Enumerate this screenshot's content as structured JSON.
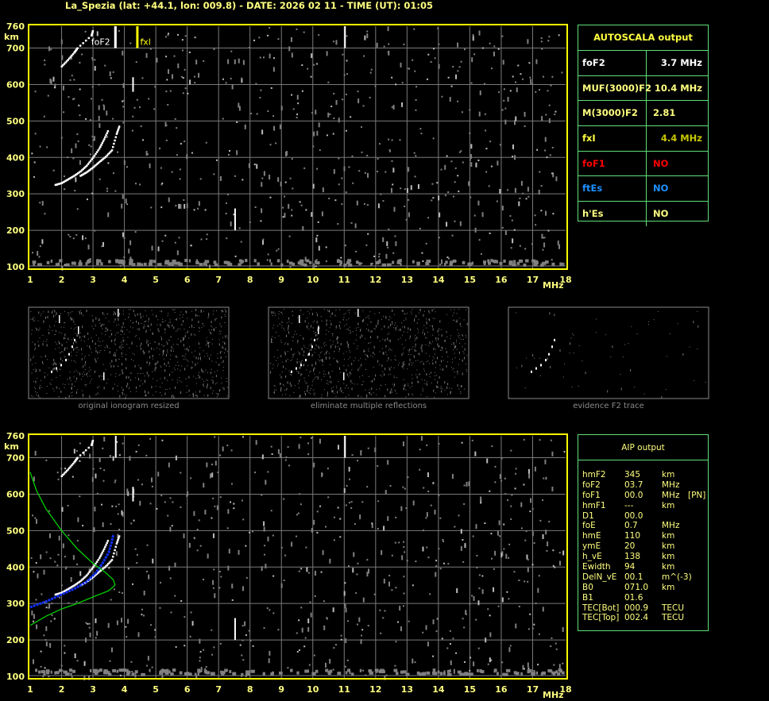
{
  "title": "La_Spezia (lat: +44.1, lon: 009.8) - DATE: 2026 02 11 - TIME (UT): 01:05",
  "colors": {
    "axis": "#ffff00",
    "grid": "#7a7a7a",
    "trace": "#ffffff",
    "fxl": "#ffff00",
    "profile": "#00e000",
    "aip_trace": "#1030ff",
    "panel_border": "#5fe07a",
    "red": "#ff0000",
    "blue": "#1e90ff"
  },
  "chart_data": [
    {
      "type": "scatter",
      "name_marker_labels": {
        "foF2": "foF2",
        "fxl": "fxl"
      },
      "xlabel": "MHz",
      "ylabel": "km",
      "xlim": [
        1,
        18
      ],
      "ylim": [
        100,
        760
      ],
      "xticks": [
        "1",
        "2",
        "3",
        "4",
        "5",
        "6",
        "7",
        "8",
        "9",
        "10",
        "11",
        "12",
        "13",
        "14",
        "15",
        "16",
        "17",
        "18"
      ],
      "yticks": [
        "100",
        "200",
        "300",
        "400",
        "500",
        "600",
        "700",
        "760"
      ],
      "grid": true,
      "markers": {
        "foF2": 3.7,
        "fxl": 4.4
      },
      "trace_o": [
        [
          1.8,
          325
        ],
        [
          2.0,
          330
        ],
        [
          2.2,
          340
        ],
        [
          2.4,
          350
        ],
        [
          2.6,
          362
        ],
        [
          2.8,
          378
        ],
        [
          3.0,
          400
        ],
        [
          3.2,
          425
        ],
        [
          3.35,
          450
        ],
        [
          3.5,
          478
        ]
      ],
      "trace_x": [
        [
          2.6,
          350
        ],
        [
          2.8,
          360
        ],
        [
          3.0,
          373
        ],
        [
          3.2,
          388
        ],
        [
          3.4,
          402
        ],
        [
          3.6,
          420
        ],
        [
          3.75,
          465
        ],
        [
          3.85,
          490
        ]
      ],
      "trace_multi": [
        [
          2.0,
          650
        ],
        [
          2.2,
          668
        ],
        [
          2.4,
          688
        ],
        [
          2.5,
          700
        ],
        [
          2.95,
          735
        ],
        [
          3.0,
          750
        ]
      ],
      "spikes": [
        [
          3.7,
          700,
          760
        ],
        [
          4.25,
          580,
          620
        ],
        [
          11.0,
          700,
          760
        ],
        [
          7.5,
          200,
          260
        ]
      ]
    },
    {
      "type": "line",
      "xlabel": "MHz",
      "ylabel": "km",
      "xlim": [
        1,
        18
      ],
      "ylim": [
        100,
        760
      ],
      "xticks": [
        "1",
        "2",
        "3",
        "4",
        "5",
        "6",
        "7",
        "8",
        "9",
        "10",
        "11",
        "12",
        "13",
        "14",
        "15",
        "16",
        "17",
        "18"
      ],
      "yticks": [
        "100",
        "200",
        "300",
        "400",
        "500",
        "600",
        "700",
        "760"
      ],
      "grid": true,
      "profile": [
        [
          1.0,
          660
        ],
        [
          1.2,
          610
        ],
        [
          1.5,
          560
        ],
        [
          2.0,
          500
        ],
        [
          2.5,
          450
        ],
        [
          3.0,
          410
        ],
        [
          3.4,
          385
        ],
        [
          3.65,
          365
        ],
        [
          3.7,
          350
        ],
        [
          3.5,
          335
        ],
        [
          3.0,
          318
        ],
        [
          2.5,
          300
        ],
        [
          2.0,
          285
        ],
        [
          1.5,
          265
        ],
        [
          1.0,
          240
        ]
      ],
      "aip_trace": [
        [
          1.0,
          290
        ],
        [
          1.5,
          305
        ],
        [
          2.0,
          325
        ],
        [
          2.4,
          340
        ],
        [
          2.8,
          360
        ],
        [
          3.1,
          385
        ],
        [
          3.3,
          410
        ],
        [
          3.5,
          440
        ],
        [
          3.6,
          470
        ],
        [
          3.65,
          490
        ]
      ]
    }
  ],
  "thumbnails": [
    {
      "caption": "original ionogram resized"
    },
    {
      "caption": "eliminate multiple reflections"
    },
    {
      "caption": "evidence F2 trace"
    }
  ],
  "autoscala": {
    "header": "AUTOSCALA output",
    "rows": [
      {
        "key": "foF2",
        "value": "3.7 MHz",
        "color": "#ffffff"
      },
      {
        "key": "MUF(3000)F2",
        "value": "10.4 MHz",
        "color": "#ffff80"
      },
      {
        "key": "M(3000)F2",
        "value": "2.81",
        "color": "#ffff80"
      },
      {
        "key": "fxI",
        "value": "4.4 MHz",
        "color": "#ffff40",
        "vcolor": "#c8c800"
      },
      {
        "key": "foF1",
        "value": "NO",
        "color": "#ff0000"
      },
      {
        "key": "ftEs",
        "value": "NO",
        "color": "#1e90ff"
      },
      {
        "key": "h'Es",
        "value": "NO",
        "color": "#ffff80"
      }
    ]
  },
  "aip": {
    "header": "AIP output",
    "rows": [
      [
        "hmF2",
        "345",
        "km",
        ""
      ],
      [
        "foF2",
        "03.7",
        "MHz",
        ""
      ],
      [
        "foF1",
        "00.0",
        "MHz",
        "[PN]"
      ],
      [
        "hmF1",
        "---",
        "km",
        ""
      ],
      [
        "D1",
        "00.0",
        "",
        ""
      ],
      [
        "foE",
        "0.7",
        "MHz",
        ""
      ],
      [
        "hmE",
        "110",
        "km",
        ""
      ],
      [
        "ymE",
        "20",
        "km",
        ""
      ],
      [
        "h_vE",
        "138",
        "km",
        ""
      ],
      [
        "Ewidth",
        "94",
        "km",
        ""
      ],
      [
        "DelN_vE",
        "00.1",
        "m^(-3)",
        ""
      ],
      [
        "B0",
        "071.0",
        "km",
        ""
      ],
      [
        "B1",
        "01.6",
        "",
        ""
      ],
      [
        "TEC[Bot]",
        "000.9",
        "TECU",
        ""
      ],
      [
        "TEC[Top]",
        "002.4",
        "TECU",
        ""
      ]
    ]
  }
}
